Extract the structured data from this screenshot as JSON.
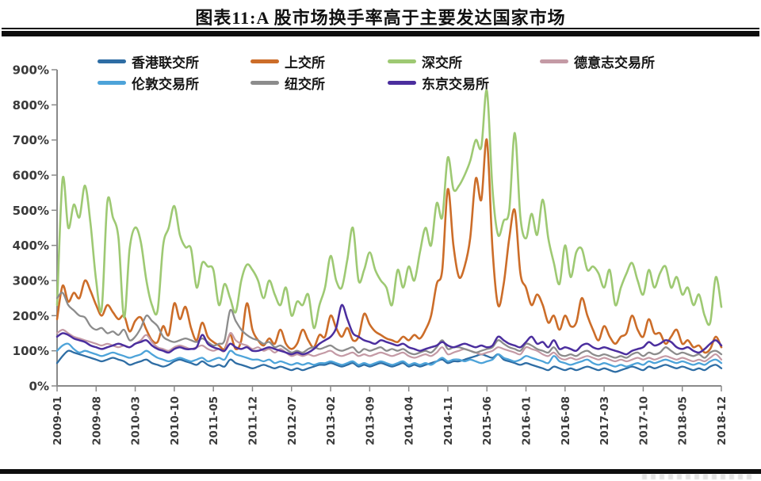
{
  "header": {
    "title": "图表11:A 股市场换手率高于主要发达国家市场"
  },
  "chart_data": {
    "type": "line",
    "title": "图表11:A 股市场换手率高于主要发达国家市场",
    "xlabel": "",
    "ylabel": "",
    "ylim": [
      0,
      900
    ],
    "grid": false,
    "legend_position": "top",
    "y_tick_labels": [
      "0%",
      "100%",
      "200%",
      "300%",
      "400%",
      "500%",
      "600%",
      "700%",
      "800%",
      "900%"
    ],
    "x_tick_labels": [
      "2009-01",
      "2009-08",
      "2010-03",
      "2010-10",
      "2011-05",
      "2011-12",
      "2012-07",
      "2013-02",
      "2013-09",
      "2014-04",
      "2014-11",
      "2015-06",
      "2016-01",
      "2016-08",
      "2017-03",
      "2017-10",
      "2018-05",
      "2018-12"
    ],
    "x_range": [
      "2009-01",
      "2018-12"
    ],
    "x_interval_months": 1,
    "series": [
      {
        "key": "hkex",
        "name": "香港联交所",
        "color": "#2e6da4",
        "values": [
          65,
          85,
          100,
          95,
          90,
          85,
          80,
          75,
          70,
          75,
          80,
          75,
          70,
          60,
          65,
          70,
          75,
          65,
          60,
          55,
          60,
          70,
          75,
          70,
          65,
          60,
          70,
          60,
          55,
          60,
          55,
          75,
          65,
          60,
          55,
          50,
          55,
          60,
          55,
          50,
          55,
          50,
          45,
          50,
          45,
          50,
          55,
          60,
          60,
          65,
          60,
          55,
          60,
          65,
          55,
          60,
          55,
          60,
          65,
          60,
          55,
          60,
          65,
          55,
          60,
          55,
          60,
          65,
          70,
          75,
          65,
          70,
          70,
          75,
          80,
          85,
          90,
          85,
          80,
          90,
          75,
          70,
          65,
          60,
          65,
          60,
          55,
          50,
          45,
          55,
          50,
          45,
          50,
          45,
          50,
          55,
          50,
          45,
          50,
          45,
          40,
          45,
          50,
          55,
          50,
          45,
          55,
          50,
          55,
          60,
          55,
          50,
          55,
          50,
          45,
          50,
          45,
          55,
          60,
          50
        ]
      },
      {
        "key": "sse",
        "name": "上交所",
        "color": "#cc6d29",
        "values": [
          190,
          285,
          240,
          265,
          250,
          300,
          270,
          230,
          200,
          230,
          210,
          190,
          200,
          155,
          185,
          195,
          160,
          130,
          125,
          170,
          145,
          235,
          190,
          225,
          165,
          130,
          180,
          140,
          125,
          115,
          105,
          145,
          105,
          130,
          235,
          160,
          130,
          115,
          135,
          120,
          160,
          120,
          105,
          120,
          160,
          130,
          110,
          145,
          140,
          200,
          165,
          140,
          165,
          130,
          140,
          205,
          175,
          155,
          145,
          135,
          130,
          125,
          140,
          130,
          145,
          135,
          160,
          200,
          290,
          330,
          560,
          400,
          310,
          340,
          420,
          590,
          530,
          700,
          390,
          230,
          290,
          420,
          500,
          320,
          280,
          230,
          260,
          230,
          180,
          200,
          160,
          200,
          170,
          180,
          250,
          200,
          160,
          130,
          170,
          140,
          120,
          140,
          150,
          200,
          160,
          140,
          190,
          150,
          150,
          120,
          140,
          160,
          120,
          130,
          110,
          115,
          95,
          105,
          140,
          110
        ]
      },
      {
        "key": "szse",
        "name": "深交所",
        "color": "#9ec973",
        "values": [
          230,
          590,
          450,
          516,
          480,
          570,
          460,
          300,
          220,
          523,
          480,
          420,
          195,
          390,
          451,
          410,
          300,
          230,
          215,
          400,
          450,
          512,
          430,
          395,
          390,
          280,
          350,
          340,
          330,
          230,
          290,
          250,
          210,
          300,
          345,
          330,
          300,
          250,
          300,
          260,
          230,
          280,
          200,
          240,
          230,
          260,
          165,
          230,
          280,
          370,
          300,
          280,
          360,
          450,
          300,
          330,
          380,
          330,
          300,
          280,
          230,
          330,
          280,
          340,
          300,
          380,
          450,
          400,
          520,
          480,
          650,
          560,
          570,
          600,
          640,
          700,
          680,
          840,
          560,
          430,
          470,
          500,
          720,
          480,
          420,
          490,
          430,
          530,
          420,
          350,
          290,
          400,
          310,
          380,
          390,
          330,
          340,
          320,
          280,
          330,
          230,
          280,
          320,
          350,
          300,
          260,
          330,
          280,
          320,
          340,
          280,
          310,
          260,
          280,
          230,
          260,
          200,
          180,
          310,
          225
        ]
      },
      {
        "key": "deutsche-boerse",
        "name": "德意志交易所",
        "color": "#c49aa5",
        "values": [
          150,
          160,
          150,
          140,
          135,
          130,
          125,
          120,
          115,
          120,
          115,
          110,
          115,
          110,
          120,
          130,
          145,
          125,
          110,
          105,
          100,
          110,
          115,
          110,
          105,
          110,
          115,
          105,
          100,
          105,
          100,
          150,
          130,
          120,
          115,
          105,
          110,
          100,
          105,
          95,
          105,
          95,
          85,
          90,
          85,
          90,
          85,
          90,
          95,
          100,
          90,
          85,
          90,
          95,
          85,
          90,
          85,
          90,
          95,
          90,
          85,
          90,
          95,
          85,
          80,
          85,
          90,
          85,
          95,
          110,
          90,
          95,
          100,
          105,
          100,
          95,
          90,
          95,
          100,
          110,
          105,
          100,
          95,
          90,
          110,
          105,
          100,
          90,
          85,
          95,
          80,
          75,
          80,
          75,
          80,
          85,
          80,
          75,
          80,
          75,
          70,
          75,
          70,
          75,
          80,
          75,
          80,
          75,
          80,
          85,
          80,
          75,
          80,
          75,
          70,
          75,
          70,
          80,
          90,
          75
        ]
      },
      {
        "key": "lse",
        "name": "伦敦交易所",
        "color": "#4da3d9",
        "values": [
          100,
          115,
          120,
          105,
          95,
          100,
          95,
          90,
          85,
          90,
          95,
          90,
          85,
          80,
          85,
          90,
          100,
          90,
          80,
          75,
          70,
          75,
          80,
          75,
          70,
          75,
          80,
          70,
          75,
          80,
          75,
          100,
          90,
          85,
          80,
          75,
          75,
          70,
          75,
          65,
          70,
          65,
          60,
          65,
          60,
          65,
          60,
          65,
          65,
          70,
          65,
          60,
          65,
          70,
          60,
          65,
          60,
          65,
          70,
          65,
          60,
          65,
          70,
          60,
          65,
          60,
          65,
          60,
          70,
          80,
          70,
          75,
          75,
          70,
          75,
          70,
          65,
          70,
          75,
          90,
          80,
          75,
          70,
          75,
          85,
          80,
          75,
          70,
          65,
          85,
          70,
          65,
          60,
          65,
          70,
          75,
          65,
          60,
          65,
          60,
          55,
          60,
          55,
          60,
          65,
          60,
          70,
          65,
          70,
          75,
          70,
          65,
          70,
          65,
          60,
          65,
          60,
          70,
          75,
          65
        ]
      },
      {
        "key": "nyse",
        "name": "纽交所",
        "color": "#8c8c8c",
        "values": [
          250,
          265,
          230,
          215,
          200,
          195,
          170,
          160,
          165,
          150,
          155,
          145,
          160,
          130,
          140,
          165,
          200,
          185,
          170,
          140,
          130,
          125,
          130,
          135,
          130,
          125,
          135,
          125,
          115,
          120,
          130,
          215,
          185,
          160,
          145,
          135,
          130,
          120,
          125,
          110,
          115,
          105,
          95,
          100,
          95,
          105,
          110,
          105,
          110,
          115,
          105,
          100,
          105,
          110,
          95,
          105,
          100,
          105,
          110,
          100,
          105,
          100,
          105,
          95,
          90,
          95,
          100,
          95,
          110,
          130,
          105,
          110,
          110,
          105,
          100,
          95,
          100,
          105,
          110,
          130,
          120,
          110,
          105,
          100,
          120,
          115,
          105,
          100,
          95,
          110,
          90,
          85,
          90,
          85,
          95,
          100,
          90,
          85,
          90,
          85,
          80,
          85,
          80,
          90,
          95,
          85,
          95,
          90,
          95,
          110,
          100,
          90,
          95,
          90,
          85,
          90,
          80,
          95,
          100,
          90
        ]
      },
      {
        "key": "tse",
        "name": "东京交易所",
        "color": "#4b2e9e",
        "values": [
          140,
          150,
          145,
          135,
          130,
          125,
          115,
          110,
          105,
          110,
          115,
          120,
          115,
          110,
          120,
          125,
          130,
          115,
          105,
          100,
          95,
          105,
          110,
          105,
          105,
          110,
          145,
          120,
          110,
          105,
          100,
          120,
          110,
          105,
          110,
          100,
          100,
          105,
          110,
          105,
          100,
          95,
          90,
          95,
          90,
          95,
          105,
          120,
          130,
          140,
          165,
          230,
          190,
          150,
          140,
          130,
          125,
          120,
          130,
          125,
          120,
          115,
          120,
          110,
          105,
          100,
          105,
          110,
          115,
          125,
          115,
          110,
          115,
          120,
          115,
          110,
          115,
          110,
          115,
          140,
          130,
          120,
          115,
          110,
          125,
          140,
          120,
          125,
          110,
          130,
          105,
          110,
          105,
          100,
          115,
          120,
          110,
          105,
          110,
          105,
          100,
          95,
          90,
          100,
          105,
          110,
          125,
          115,
          120,
          130,
          125,
          110,
          105,
          110,
          100,
          95,
          105,
          120,
          130,
          115
        ]
      }
    ]
  }
}
